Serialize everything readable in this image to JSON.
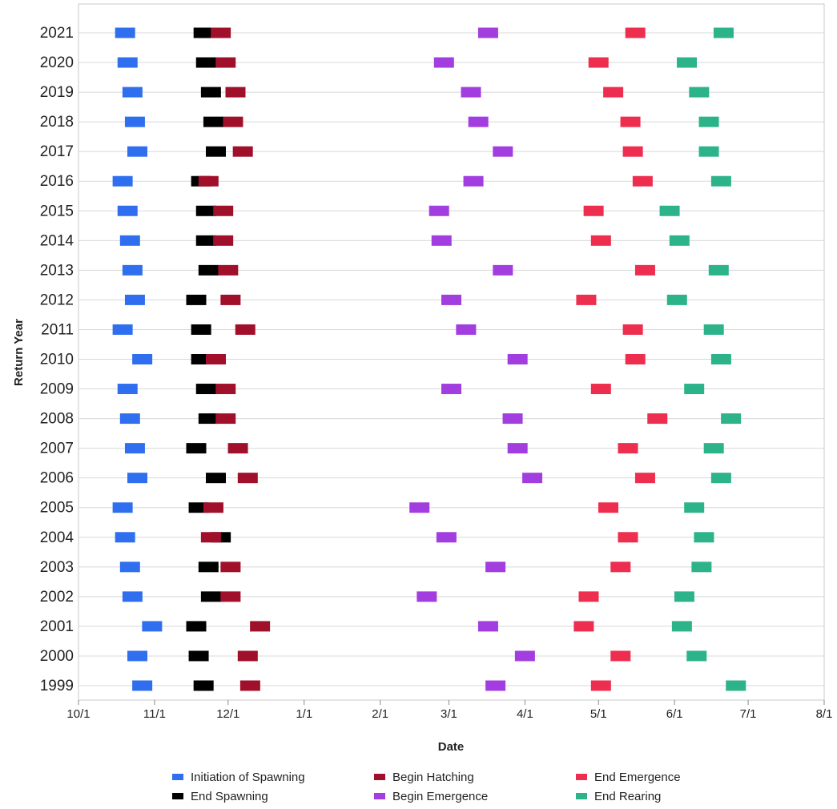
{
  "chart_data": {
    "type": "timeline",
    "x_label": "Date",
    "y_label": "Return Year",
    "categories": [
      "1999",
      "2000",
      "2001",
      "2002",
      "2003",
      "2004",
      "2005",
      "2006",
      "2007",
      "2008",
      "2009",
      "2010",
      "2011",
      "2012",
      "2013",
      "2014",
      "2015",
      "2016",
      "2017",
      "2018",
      "2019",
      "2020",
      "2021"
    ],
    "xlim": [
      0,
      304
    ],
    "xticks": [
      {
        "value": 0,
        "label": "10/1"
      },
      {
        "value": 31,
        "label": "11/1"
      },
      {
        "value": 61,
        "label": "12/1"
      },
      {
        "value": 92,
        "label": "1/1"
      },
      {
        "value": 123,
        "label": "2/1"
      },
      {
        "value": 151,
        "label": "3/1"
      },
      {
        "value": 182,
        "label": "4/1"
      },
      {
        "value": 212,
        "label": "5/1"
      },
      {
        "value": 243,
        "label": "6/1"
      },
      {
        "value": 273,
        "label": "7/1"
      },
      {
        "value": 304,
        "label": "8/1"
      }
    ],
    "grid": true,
    "series": [
      {
        "name": "Initiation of Spawning",
        "color": "#2f6fef",
        "values": [
          26,
          24,
          30,
          22,
          21,
          19,
          18,
          24,
          23,
          21,
          20,
          26,
          18,
          23,
          22,
          21,
          20,
          18,
          24,
          23,
          22,
          20,
          19
        ]
      },
      {
        "name": "End Spawning",
        "color": "#000000",
        "values": [
          51,
          49,
          48,
          54,
          53,
          58,
          49,
          56,
          48,
          53,
          52,
          50,
          50,
          48,
          53,
          52,
          52,
          50,
          56,
          55,
          54,
          52,
          51
        ]
      },
      {
        "name": "Begin Hatching",
        "color": "#a0102a",
        "values": [
          70,
          69,
          74,
          62,
          62,
          54,
          55,
          69,
          65,
          60,
          60,
          56,
          68,
          62,
          61,
          59,
          59,
          53,
          67,
          63,
          64,
          60,
          58
        ]
      },
      {
        "name": "Begin Emergence",
        "color": "#a23ee0",
        "values": [
          170,
          182,
          167,
          142,
          170,
          150,
          139,
          185,
          179,
          177,
          152,
          179,
          158,
          152,
          173,
          148,
          147,
          161,
          173,
          163,
          160,
          149,
          167
        ]
      },
      {
        "name": "End Emergence",
        "color": "#ee2e4e",
        "values": [
          213,
          221,
          206,
          208,
          221,
          224,
          216,
          231,
          224,
          236,
          213,
          227,
          226,
          207,
          231,
          213,
          210,
          230,
          226,
          225,
          218,
          212,
          227
        ]
      },
      {
        "name": "End Rearing",
        "color": "#2db38a",
        "values": [
          268,
          252,
          246,
          247,
          254,
          255,
          251,
          262,
          259,
          266,
          251,
          262,
          259,
          244,
          261,
          245,
          241,
          262,
          257,
          257,
          253,
          248,
          263
        ]
      }
    ]
  }
}
